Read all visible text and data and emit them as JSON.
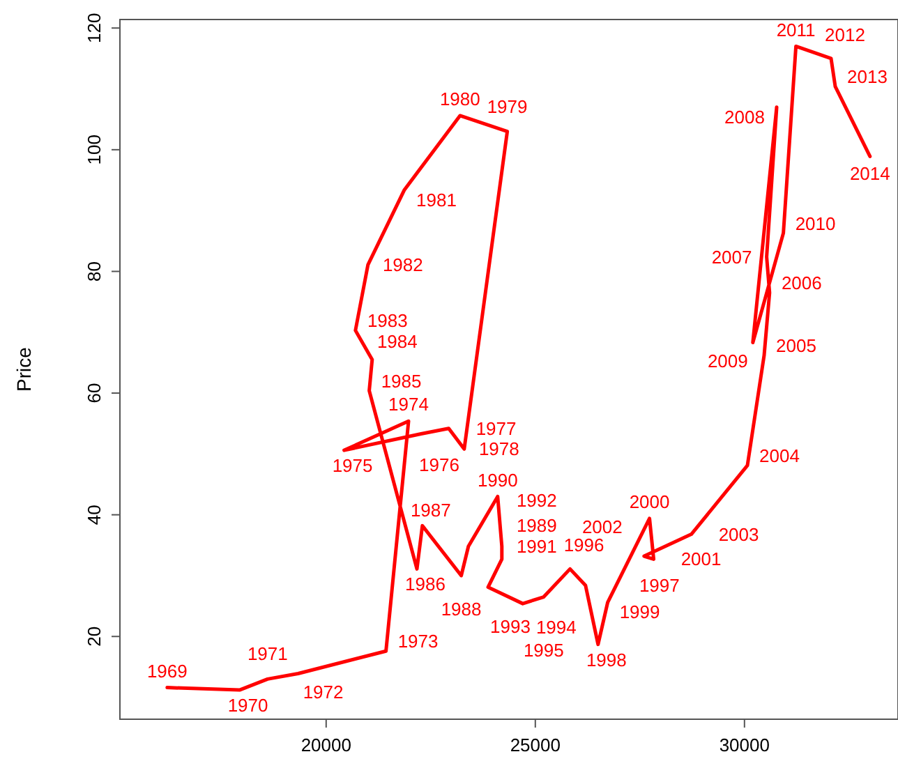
{
  "chart_data": {
    "type": "line",
    "ylabel": "Price",
    "xlim": [
      15070,
      33670
    ],
    "ylim": [
      6.4,
      121.4
    ],
    "xticks": [
      20000,
      25000,
      30000
    ],
    "yticks": [
      20,
      40,
      60,
      80,
      100,
      120
    ],
    "marker": "none",
    "line_style": "solid",
    "series": [
      {
        "color": "#ff0000",
        "x": [
          16200,
          17930,
          18600,
          19330,
          21430,
          21970,
          20430,
          22270,
          22930,
          23300,
          24330,
          23200,
          21870,
          21000,
          20700,
          21100,
          21030,
          22170,
          22300,
          23230,
          23400,
          24100,
          24200,
          24200,
          23870,
          24700,
          25200,
          25830,
          26200,
          26500,
          26730,
          27730,
          27830,
          27600,
          28730,
          30070,
          30470,
          30600,
          30530,
          30770,
          30200,
          30930,
          31230,
          32070,
          32170,
          33000
        ],
        "values": [
          11.6,
          11.2,
          13.0,
          13.9,
          17.6,
          55.4,
          50.6,
          53.3,
          54.2,
          50.8,
          103.0,
          105.6,
          93.4,
          81.1,
          70.3,
          65.5,
          60.4,
          31.1,
          38.2,
          30.0,
          34.8,
          43.0,
          34.8,
          32.7,
          28.1,
          25.4,
          26.5,
          31.1,
          28.4,
          18.7,
          25.6,
          39.4,
          32.7,
          33.2,
          36.8,
          48.1,
          66.2,
          76.5,
          82.4,
          107.0,
          68.3,
          86.3,
          117.0,
          115.0,
          110.4,
          98.9
        ]
      }
    ],
    "annotations": [
      {
        "text": "1969",
        "x": 16200,
        "y": 11.6
      },
      {
        "text": "1970",
        "x": 17930,
        "y": 11.2
      },
      {
        "text": "1971",
        "x": 18600,
        "y": 13.0
      },
      {
        "text": "1972",
        "x": 19330,
        "y": 13.9
      },
      {
        "text": "1973",
        "x": 21430,
        "y": 17.6
      },
      {
        "text": "1974",
        "x": 21970,
        "y": 55.4
      },
      {
        "text": "1975",
        "x": 20430,
        "y": 50.6
      },
      {
        "text": "1976",
        "x": 22270,
        "y": 53.3
      },
      {
        "text": "1977",
        "x": 22930,
        "y": 54.2
      },
      {
        "text": "1978",
        "x": 23300,
        "y": 50.8
      },
      {
        "text": "1979",
        "x": 24330,
        "y": 103.0
      },
      {
        "text": "1980",
        "x": 23200,
        "y": 105.6
      },
      {
        "text": "1981",
        "x": 21870,
        "y": 93.4
      },
      {
        "text": "1982",
        "x": 21000,
        "y": 81.1
      },
      {
        "text": "1983",
        "x": 20700,
        "y": 70.3
      },
      {
        "text": "1984",
        "x": 21100,
        "y": 65.5
      },
      {
        "text": "1985",
        "x": 21030,
        "y": 60.4
      },
      {
        "text": "1986",
        "x": 22170,
        "y": 31.1
      },
      {
        "text": "1987",
        "x": 22300,
        "y": 38.2
      },
      {
        "text": "1988",
        "x": 23230,
        "y": 30.0
      },
      {
        "text": "1989",
        "x": 23400,
        "y": 34.8
      },
      {
        "text": "1990",
        "x": 24100,
        "y": 43.0
      },
      {
        "text": "1991",
        "x": 24200,
        "y": 34.8
      },
      {
        "text": "1992",
        "x": 24200,
        "y": 32.7
      },
      {
        "text": "1993",
        "x": 23870,
        "y": 28.1
      },
      {
        "text": "1994",
        "x": 24700,
        "y": 25.4
      },
      {
        "text": "1995",
        "x": 25200,
        "y": 26.5
      },
      {
        "text": "1996",
        "x": 25830,
        "y": 31.1
      },
      {
        "text": "1997",
        "x": 26200,
        "y": 28.4
      },
      {
        "text": "1998",
        "x": 26500,
        "y": 18.7
      },
      {
        "text": "1999",
        "x": 26730,
        "y": 25.6
      },
      {
        "text": "2000",
        "x": 27730,
        "y": 39.4
      },
      {
        "text": "2001",
        "x": 27830,
        "y": 32.7
      },
      {
        "text": "2002",
        "x": 27600,
        "y": 33.2
      },
      {
        "text": "2003",
        "x": 28730,
        "y": 36.8
      },
      {
        "text": "2004",
        "x": 30070,
        "y": 48.1
      },
      {
        "text": "2005",
        "x": 30470,
        "y": 66.2
      },
      {
        "text": "2006",
        "x": 30600,
        "y": 76.5
      },
      {
        "text": "2007",
        "x": 30530,
        "y": 82.4
      },
      {
        "text": "2008",
        "x": 30770,
        "y": 107.0
      },
      {
        "text": "2009",
        "x": 30200,
        "y": 68.3
      },
      {
        "text": "2010",
        "x": 30930,
        "y": 86.3
      },
      {
        "text": "2011",
        "x": 31230,
        "y": 117.0
      },
      {
        "text": "2012",
        "x": 32070,
        "y": 115.0
      },
      {
        "text": "2013",
        "x": 32170,
        "y": 110.4
      },
      {
        "text": "2014",
        "x": 33000,
        "y": 98.9
      }
    ]
  }
}
